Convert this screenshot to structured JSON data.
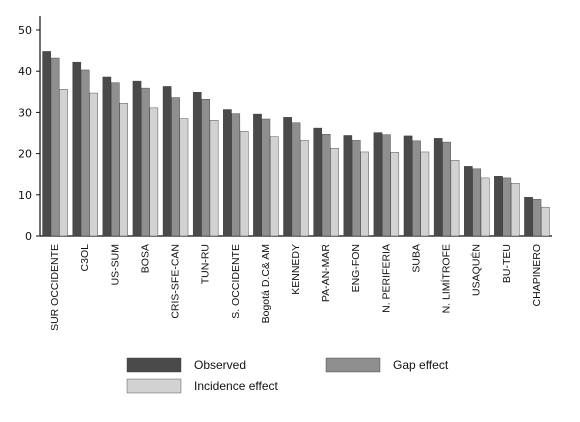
{
  "chart_data": {
    "type": "bar",
    "categories": [
      "SUR OCCIDENTE",
      "C3OL",
      "US-SUM",
      "BOSA",
      "CRIS-SFE-CAN",
      "TUN-RU",
      "S. OCCIDENTE",
      "Bogotá D.C& AM",
      "KENNEDY",
      "PA-AN-MAR",
      "ENG-FON",
      "N. PERIFERIA",
      "SUBA",
      "N. LIMÍTROFE",
      "USAQUÉN",
      "BU-TEU",
      "CHAPINERO"
    ],
    "series": [
      {
        "name": "Observed",
        "color": "#4a4a4a",
        "values": [
          44.8,
          42.2,
          38.6,
          37.6,
          36.3,
          34.9,
          30.7,
          29.6,
          28.8,
          26.2,
          24.4,
          25.1,
          24.3,
          23.7,
          16.9,
          14.5,
          9.4
        ]
      },
      {
        "name": "Gap effect",
        "color": "#8f8f8f",
        "values": [
          43.2,
          40.3,
          37.2,
          35.9,
          33.6,
          33.2,
          29.7,
          28.4,
          27.5,
          24.7,
          23.2,
          24.6,
          23.1,
          22.8,
          16.3,
          14.1,
          8.9
        ]
      },
      {
        "name": "Incidence effect",
        "color": "#d2d2d2",
        "values": [
          35.6,
          34.7,
          32.2,
          31.1,
          28.5,
          28.1,
          25.4,
          24.1,
          23.2,
          21.3,
          20.4,
          20.3,
          20.4,
          18.4,
          14.1,
          12.8,
          7.0
        ]
      }
    ],
    "ylim": [
      0,
      50
    ],
    "yticks": [
      0,
      10,
      20,
      30,
      40,
      50
    ],
    "grid": false,
    "legend": "bottom",
    "xlabel": "",
    "ylabel": "",
    "title": ""
  }
}
